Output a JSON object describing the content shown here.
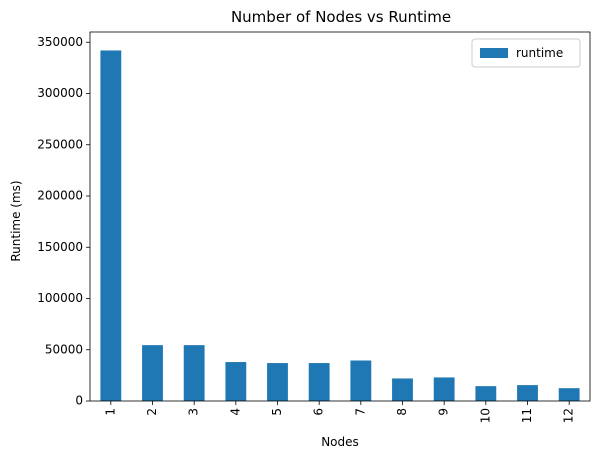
{
  "chart_data": {
    "type": "bar",
    "title": "Number of Nodes vs Runtime",
    "xlabel": "Nodes",
    "ylabel": "Runtime (ms)",
    "categories": [
      "1",
      "2",
      "3",
      "4",
      "5",
      "6",
      "7",
      "8",
      "9",
      "10",
      "11",
      "12"
    ],
    "series": [
      {
        "name": "runtime",
        "color": "#1f77b4",
        "values": [
          342000,
          54500,
          54500,
          38000,
          37000,
          37000,
          39500,
          22000,
          23000,
          14500,
          15500,
          12500
        ]
      }
    ],
    "ylim": [
      0,
      360000
    ],
    "yticks": [
      0,
      50000,
      100000,
      150000,
      200000,
      250000,
      300000,
      350000
    ],
    "ytick_labels": [
      "0",
      "50000",
      "100000",
      "150000",
      "200000",
      "250000",
      "300000",
      "350000"
    ],
    "x_tick_rotation": "vertical",
    "grid": false,
    "legend_position": "top-right"
  }
}
